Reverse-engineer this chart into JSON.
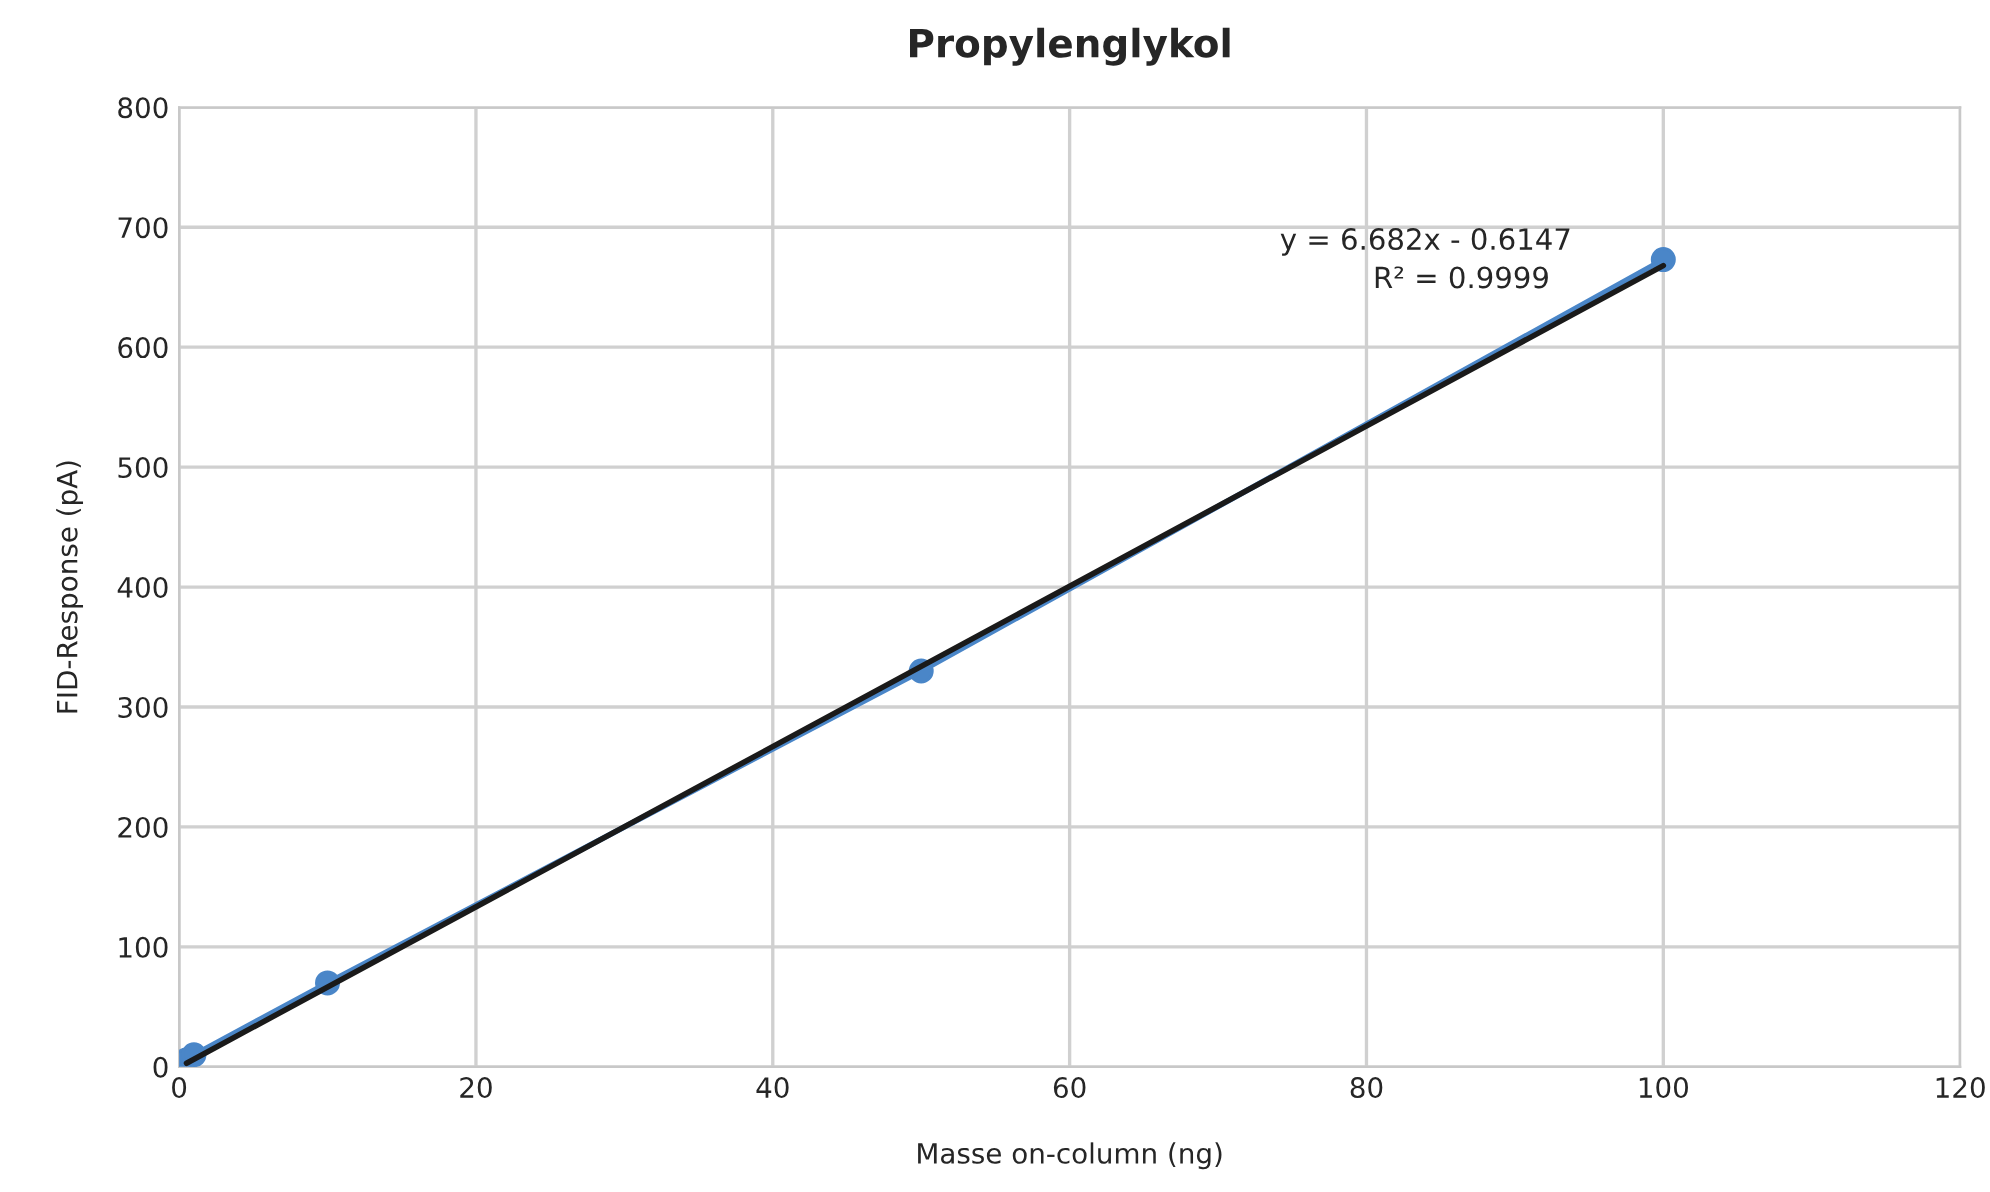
{
  "chart_data": {
    "type": "line",
    "title": "Propylenglykol",
    "xlabel": "Masse on-column (ng)",
    "ylabel": "FID-Response (pA)",
    "series": [
      {
        "color": "#4a86c8",
        "x": [
          0.5,
          1,
          10,
          50,
          100
        ],
        "values": [
          6,
          10,
          70,
          330,
          673
        ],
        "marker": "circle"
      },
      {
        "type": "line",
        "color": "#1a1a1a",
        "x": [
          0.5,
          100
        ],
        "values": [
          3,
          668
        ],
        "marker": "none"
      }
    ],
    "annotations": [
      "y = 6.682x - 0.6147",
      "R² = 0.9999"
    ],
    "xlim": [
      0,
      120
    ],
    "xticks": [
      0,
      20,
      40,
      60,
      80,
      100,
      120
    ],
    "ylim": [
      0,
      800
    ],
    "yticks": [
      0,
      100,
      200,
      300,
      400,
      500,
      600,
      700,
      800
    ],
    "grid": true
  }
}
